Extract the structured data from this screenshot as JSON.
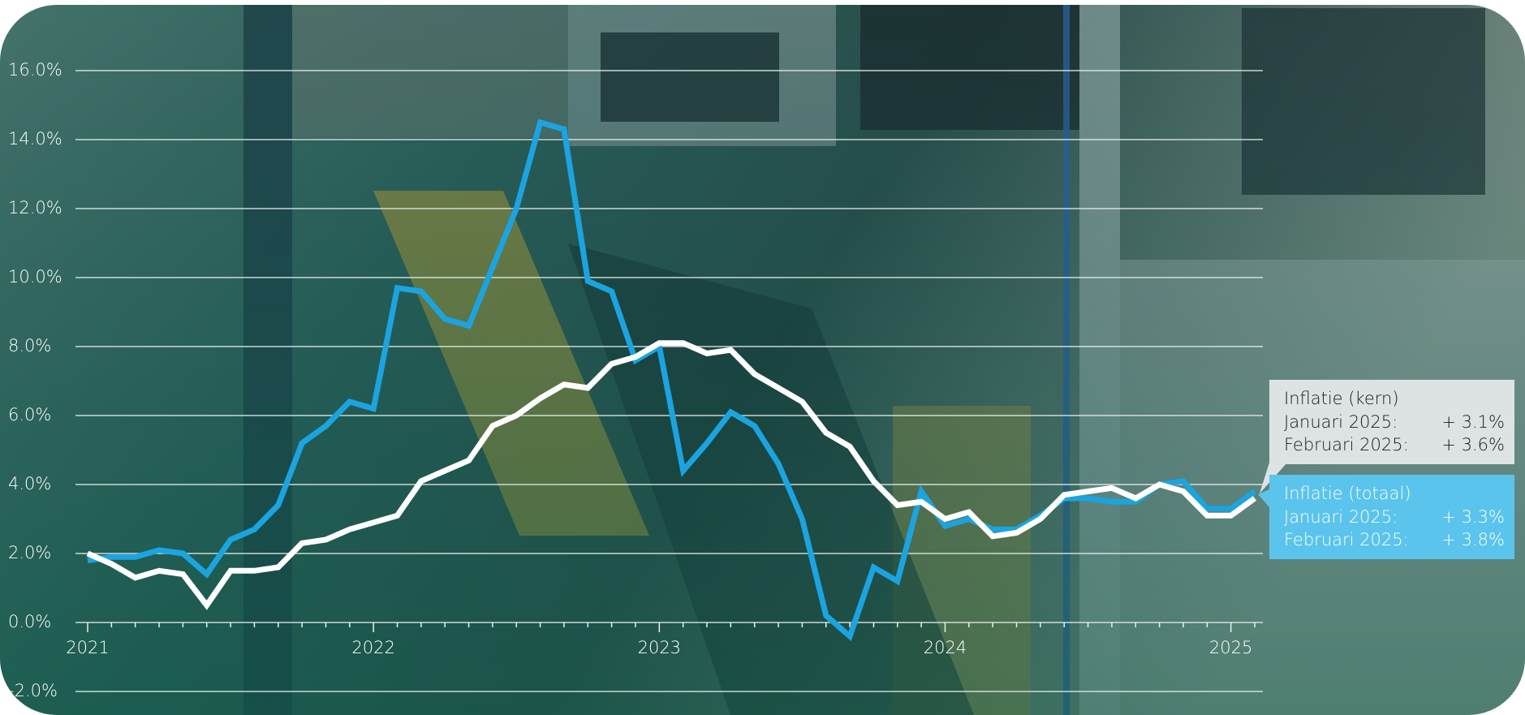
{
  "chart_data": {
    "type": "line",
    "categories": [
      "2021",
      null,
      null,
      null,
      null,
      null,
      null,
      null,
      null,
      null,
      null,
      null,
      "2022",
      null,
      null,
      null,
      null,
      null,
      null,
      null,
      null,
      null,
      null,
      null,
      "2023",
      null,
      null,
      null,
      null,
      null,
      null,
      null,
      null,
      null,
      null,
      null,
      "2024",
      null,
      null,
      null,
      null,
      null,
      null,
      null,
      null,
      null,
      null,
      null,
      "2025",
      null
    ],
    "series": [
      {
        "name": "Inflatie (totaal)",
        "color": "#1ba4e0",
        "values": [
          1.8,
          1.9,
          1.9,
          2.1,
          2.0,
          1.4,
          2.4,
          2.7,
          3.4,
          5.2,
          5.7,
          6.4,
          6.2,
          9.7,
          9.6,
          8.8,
          8.6,
          10.3,
          12.0,
          14.5,
          14.3,
          9.9,
          9.6,
          7.6,
          8.0,
          4.4,
          5.2,
          6.1,
          5.7,
          4.6,
          3.0,
          0.2,
          -0.4,
          1.6,
          1.2,
          3.8,
          2.8,
          3.0,
          2.7,
          2.7,
          3.1,
          3.6,
          3.6,
          3.5,
          3.5,
          4.0,
          4.1,
          3.3,
          3.3,
          3.8
        ],
        "callout": {
          "box_color": "#5bc4ec",
          "text_color": "#ffffff",
          "rows": [
            {
              "label": "Januari 2025:",
              "value_label": "+ 3.3%"
            },
            {
              "label": "Februari 2025:",
              "value_label": "+ 3.8%"
            }
          ]
        }
      },
      {
        "name": "Inflatie (kern)",
        "color": "#ffffff",
        "values": [
          2.0,
          1.7,
          1.3,
          1.5,
          1.4,
          0.5,
          1.5,
          1.5,
          1.6,
          2.3,
          2.4,
          2.7,
          2.9,
          3.1,
          4.1,
          4.4,
          4.7,
          5.7,
          6.0,
          6.5,
          6.9,
          6.8,
          7.5,
          7.7,
          8.1,
          8.1,
          7.8,
          7.9,
          7.2,
          6.8,
          6.4,
          5.5,
          5.1,
          4.1,
          3.4,
          3.5,
          3.0,
          3.2,
          2.5,
          2.6,
          3.0,
          3.7,
          3.8,
          3.9,
          3.6,
          4.0,
          3.8,
          3.1,
          3.1,
          3.6
        ],
        "callout": {
          "box_color": "#dde3e3",
          "text_color": "#1a1a1a",
          "rows": [
            {
              "label": "Januari 2025:",
              "value_label": "+ 3.1%"
            },
            {
              "label": "Februari 2025:",
              "value_label": "+ 3.6%"
            }
          ]
        }
      }
    ],
    "ylim": [
      -2,
      16
    ],
    "yticks": [
      {
        "value": -2,
        "label": "-2.0%"
      },
      {
        "value": 0,
        "label": "0.0%"
      },
      {
        "value": 2,
        "label": "2.0%"
      },
      {
        "value": 4,
        "label": "4.0%"
      },
      {
        "value": 6,
        "label": "6.0%"
      },
      {
        "value": 8,
        "label": "8.0%"
      },
      {
        "value": 10,
        "label": "10.0%"
      },
      {
        "value": 12,
        "label": "12.0%"
      },
      {
        "value": 14,
        "label": "14.0%"
      },
      {
        "value": 16,
        "label": "16.0%"
      }
    ],
    "grid": true
  }
}
